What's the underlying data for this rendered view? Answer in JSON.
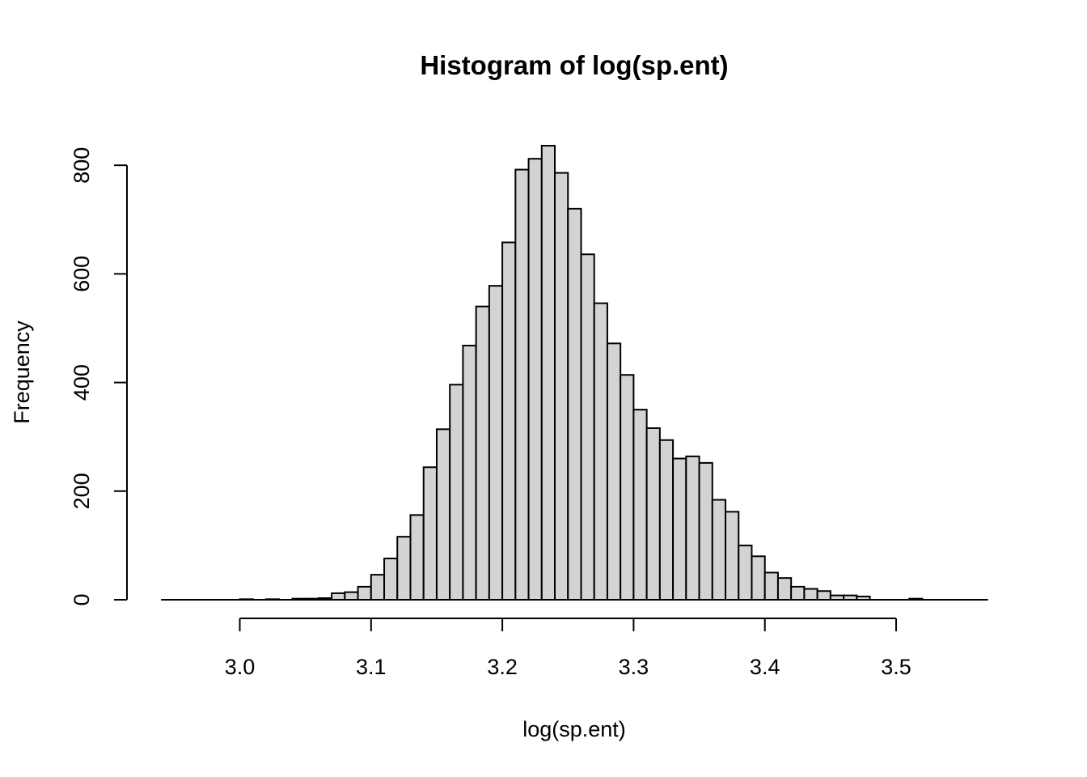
{
  "chart_data": {
    "type": "bar",
    "title": "Histogram of log(sp.ent)",
    "xlabel": "log(sp.ent)",
    "ylabel": "Frequency",
    "bar_fill": "#d3d3d3",
    "bar_stroke": "#000000",
    "bin_width": 0.01,
    "bin_start": 2.94,
    "xlim": [
      2.94,
      3.57
    ],
    "ylim": [
      0,
      850
    ],
    "x_ticks": [
      3.0,
      3.1,
      3.2,
      3.3,
      3.4,
      3.5
    ],
    "x_tick_labels": [
      "3.0",
      "3.1",
      "3.2",
      "3.3",
      "3.4",
      "3.5"
    ],
    "y_ticks": [
      0,
      200,
      400,
      600,
      800
    ],
    "y_tick_labels": [
      "0",
      "200",
      "400",
      "600",
      "800"
    ],
    "values": [
      0,
      0,
      0,
      0,
      0,
      0,
      1,
      0,
      1,
      0,
      2,
      2,
      3,
      12,
      14,
      24,
      46,
      76,
      116,
      156,
      244,
      314,
      396,
      468,
      540,
      578,
      658,
      792,
      812,
      836,
      786,
      720,
      636,
      546,
      472,
      414,
      350,
      316,
      294,
      260,
      264,
      252,
      184,
      162,
      100,
      80,
      50,
      40,
      24,
      20,
      16,
      8,
      8,
      6,
      0,
      0,
      0,
      2,
      0,
      0,
      0,
      0,
      0
    ],
    "grid": false,
    "legend": "none"
  }
}
